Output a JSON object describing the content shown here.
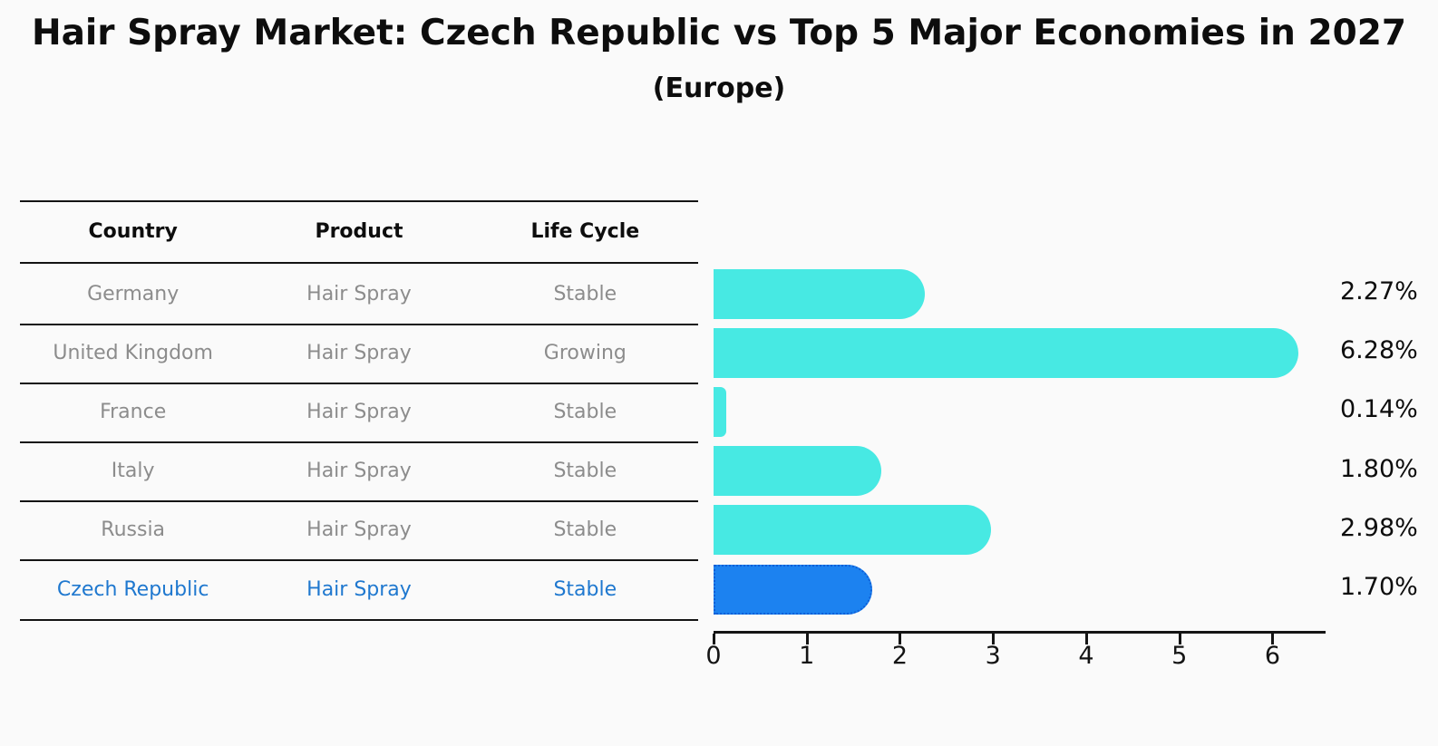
{
  "chart_data": {
    "type": "bar",
    "orientation": "horizontal",
    "title": "Hair Spray Market: Czech Republic vs Top 5 Major Economies in 2027",
    "subtitle": "(Europe)",
    "categories": [
      "Germany",
      "United Kingdom",
      "France",
      "Italy",
      "Russia",
      "Czech Republic"
    ],
    "values": [
      2.27,
      6.28,
      0.14,
      1.8,
      2.98,
      1.7
    ],
    "value_labels": [
      "2.27%",
      "6.28%",
      "0.14%",
      "1.80%",
      "2.98%",
      "1.70%"
    ],
    "x_ticks": [
      "0",
      "1",
      "2",
      "3",
      "4",
      "5",
      "6"
    ],
    "xlim": [
      0,
      6.57
    ],
    "xlabel": "",
    "ylabel": "",
    "grid": false,
    "legend": null,
    "highlight_index": 5,
    "highlight_style": "dotted-border"
  },
  "table": {
    "headers": [
      "Country",
      "Product",
      "Life Cycle"
    ],
    "rows": [
      {
        "country": "Germany",
        "product": "Hair Spray",
        "life_cycle": "Stable",
        "highlight": false
      },
      {
        "country": "United Kingdom",
        "product": "Hair Spray",
        "life_cycle": "Growing",
        "highlight": false
      },
      {
        "country": "France",
        "product": "Hair Spray",
        "life_cycle": "Stable",
        "highlight": false
      },
      {
        "country": "Italy",
        "product": "Hair Spray",
        "life_cycle": "Stable",
        "highlight": false
      },
      {
        "country": "Russia",
        "product": "Hair Spray",
        "life_cycle": "Stable",
        "highlight": false
      },
      {
        "country": "Czech Republic",
        "product": "Hair Spray",
        "life_cycle": "Stable",
        "highlight": true
      }
    ]
  },
  "colors": {
    "background": "#fafafa",
    "bar": "#47e9e3",
    "highlight_bar": "#1c82f0",
    "highlight_border": "#0f5fd7",
    "row_text": "#8c8c8c",
    "highlight_text": "#1f78cf",
    "header_text": "#0d0d0d",
    "axis": "#141414"
  }
}
